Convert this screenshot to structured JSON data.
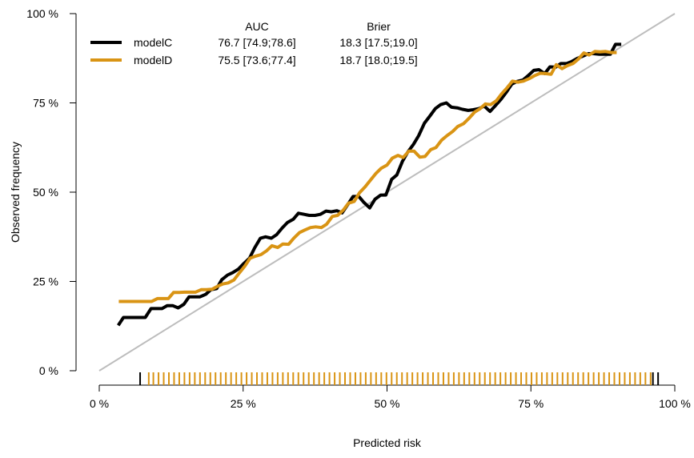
{
  "chart_data": {
    "type": "line",
    "title": "",
    "xlabel": "Predicted risk",
    "ylabel": "Observed frequency",
    "xlim": [
      0,
      100
    ],
    "ylim": [
      0,
      100
    ],
    "x_ticks": [
      {
        "value": 0,
        "label": "0 %"
      },
      {
        "value": 25,
        "label": "25 %"
      },
      {
        "value": 50,
        "label": "50 %"
      },
      {
        "value": 75,
        "label": "75 %"
      },
      {
        "value": 100,
        "label": "100 %"
      }
    ],
    "y_ticks": [
      {
        "value": 0,
        "label": "0 %"
      },
      {
        "value": 25,
        "label": "25 %"
      },
      {
        "value": 50,
        "label": "50 %"
      },
      {
        "value": 75,
        "label": "75 %"
      },
      {
        "value": 100,
        "label": "100 %"
      }
    ],
    "grid": false,
    "legend_position": "top-left",
    "legend_headers": {
      "auc": "AUC",
      "brier": "Brier"
    },
    "reference_line": {
      "name": "diagonal",
      "color": "#bdbdbd",
      "points": [
        [
          0,
          0
        ],
        [
          100,
          100
        ]
      ]
    },
    "series": [
      {
        "name": "modelC",
        "color": "#000000",
        "auc": "76.7 [74.9;78.6]",
        "brier": "18.3 [17.5;19.0]",
        "x": [
          3.3,
          4.2,
          5.2,
          6.1,
          7.1,
          8.0,
          9.0,
          9.9,
          10.9,
          11.8,
          12.8,
          13.7,
          14.7,
          15.6,
          16.6,
          17.5,
          18.5,
          19.4,
          20.4,
          21.3,
          22.3,
          23.2,
          24.2,
          25.1,
          26.1,
          27.0,
          28.0,
          28.9,
          29.9,
          30.8,
          31.8,
          32.7,
          33.7,
          34.6,
          35.6,
          36.5,
          37.5,
          38.4,
          39.4,
          40.3,
          41.3,
          42.2,
          43.2,
          44.1,
          45.1,
          46.0,
          47.0,
          47.9,
          48.9,
          49.8,
          50.8,
          51.7,
          52.7,
          53.6,
          54.6,
          55.5,
          56.5,
          57.4,
          58.4,
          59.3,
          60.3,
          61.2,
          62.2,
          63.1,
          64.1,
          65.0,
          66.0,
          66.9,
          67.9,
          68.8,
          69.8,
          70.7,
          71.7,
          72.6,
          73.6,
          74.5,
          75.5,
          76.4,
          77.4,
          78.3,
          79.3,
          80.2,
          81.2,
          82.1,
          83.1,
          84.0,
          85.0,
          85.9,
          86.9,
          87.8,
          88.8,
          89.7,
          90.7
        ],
        "y": [
          12.7,
          14.9,
          14.9,
          14.9,
          14.9,
          14.9,
          17.4,
          17.4,
          17.4,
          18.2,
          18.2,
          17.6,
          18.6,
          20.7,
          20.7,
          20.7,
          21.4,
          22.7,
          23.0,
          25.5,
          26.8,
          27.5,
          28.5,
          30.0,
          31.5,
          34.4,
          37.1,
          37.5,
          37.1,
          38.1,
          40.0,
          41.5,
          42.4,
          44.1,
          43.8,
          43.5,
          43.5,
          43.8,
          44.7,
          44.5,
          44.8,
          44.2,
          46.6,
          48.8,
          48.8,
          47.1,
          45.6,
          48.0,
          49.2,
          49.2,
          53.6,
          54.8,
          58.7,
          61.2,
          63.4,
          65.8,
          69.3,
          71.2,
          73.4,
          74.5,
          75.0,
          73.8,
          73.6,
          73.2,
          72.9,
          73.1,
          73.4,
          74.1,
          72.6,
          74.2,
          76.0,
          77.9,
          80.3,
          81.0,
          81.4,
          82.6,
          84.1,
          84.3,
          83.2,
          85.1,
          85.0,
          86.0,
          86.0,
          86.6,
          87.5,
          88.1,
          88.8,
          88.8,
          88.6,
          88.6,
          88.6,
          91.4,
          91.4
        ]
      },
      {
        "name": "modelD",
        "color": "#d99414",
        "auc": "75.5 [73.6;77.4]",
        "brier": "18.7 [18.0;19.5]",
        "x": [
          3.4,
          4.4,
          5.3,
          6.3,
          7.2,
          8.2,
          9.1,
          10.1,
          11.0,
          12.0,
          12.9,
          13.9,
          14.8,
          15.8,
          16.7,
          17.7,
          18.6,
          19.6,
          20.5,
          21.5,
          22.4,
          23.4,
          24.3,
          25.3,
          26.2,
          27.2,
          28.1,
          29.1,
          30.0,
          31.0,
          31.9,
          32.9,
          33.8,
          34.8,
          35.7,
          36.7,
          37.6,
          38.6,
          39.5,
          40.5,
          41.4,
          42.4,
          43.3,
          44.3,
          45.2,
          46.2,
          47.1,
          48.1,
          49.0,
          50.0,
          50.9,
          51.9,
          52.8,
          53.8,
          54.7,
          55.7,
          56.6,
          57.6,
          58.5,
          59.5,
          60.4,
          61.4,
          62.3,
          63.3,
          64.2,
          65.2,
          66.1,
          67.1,
          68.0,
          69.0,
          69.9,
          70.9,
          71.8,
          72.8,
          73.7,
          74.7,
          75.6,
          76.6,
          77.5,
          78.5,
          79.4,
          80.4,
          81.3,
          82.3,
          83.2,
          84.2,
          85.1,
          86.1,
          87.0,
          88.0,
          88.9,
          89.9
        ],
        "y": [
          19.4,
          19.4,
          19.4,
          19.4,
          19.4,
          19.4,
          19.4,
          20.2,
          20.2,
          20.2,
          21.9,
          21.9,
          22.0,
          22.0,
          22.0,
          22.7,
          22.7,
          22.8,
          23.6,
          24.3,
          24.6,
          25.4,
          27.3,
          29.3,
          31.5,
          32.1,
          32.5,
          33.6,
          35.0,
          34.5,
          35.5,
          35.4,
          37.1,
          38.7,
          39.4,
          40.1,
          40.3,
          40.1,
          41.0,
          43.2,
          43.5,
          45.0,
          46.9,
          47.4,
          49.8,
          51.5,
          53.3,
          55.3,
          56.7,
          57.6,
          59.5,
          60.3,
          59.7,
          61.5,
          61.5,
          59.8,
          60.0,
          61.9,
          62.5,
          64.6,
          65.8,
          67.0,
          68.4,
          69.2,
          70.6,
          72.4,
          73.3,
          74.7,
          74.5,
          75.6,
          77.5,
          79.3,
          81.1,
          80.8,
          81.1,
          81.8,
          82.6,
          83.3,
          83.2,
          83.0,
          85.7,
          84.6,
          85.4,
          86.0,
          87.2,
          89.0,
          88.4,
          89.4,
          89.3,
          89.4,
          89.1,
          89.1
        ]
      }
    ],
    "rug": {
      "position": "bottom",
      "ticks": [
        {
          "x": 7.1,
          "color": "#000000"
        },
        {
          "x": 8.6,
          "color": "#d99414"
        },
        {
          "x": 9.4,
          "color": "#d99414"
        },
        {
          "x": 10.3,
          "color": "#d99414"
        },
        {
          "x": 11.2,
          "color": "#d99414"
        },
        {
          "x": 12.1,
          "color": "#d99414"
        },
        {
          "x": 13.0,
          "color": "#d99414"
        },
        {
          "x": 13.9,
          "color": "#d99414"
        },
        {
          "x": 14.8,
          "color": "#d99414"
        },
        {
          "x": 15.7,
          "color": "#d99414"
        },
        {
          "x": 16.6,
          "color": "#d99414"
        },
        {
          "x": 17.5,
          "color": "#d99414"
        },
        {
          "x": 18.4,
          "color": "#d99414"
        },
        {
          "x": 19.3,
          "color": "#d99414"
        },
        {
          "x": 20.2,
          "color": "#d99414"
        },
        {
          "x": 21.1,
          "color": "#d99414"
        },
        {
          "x": 22.0,
          "color": "#d99414"
        },
        {
          "x": 22.9,
          "color": "#d99414"
        },
        {
          "x": 23.8,
          "color": "#d99414"
        },
        {
          "x": 24.7,
          "color": "#d99414"
        },
        {
          "x": 25.6,
          "color": "#d99414"
        },
        {
          "x": 26.5,
          "color": "#d99414"
        },
        {
          "x": 27.4,
          "color": "#d99414"
        },
        {
          "x": 28.3,
          "color": "#d99414"
        },
        {
          "x": 29.2,
          "color": "#d99414"
        },
        {
          "x": 30.1,
          "color": "#d99414"
        },
        {
          "x": 31.0,
          "color": "#d99414"
        },
        {
          "x": 31.9,
          "color": "#d99414"
        },
        {
          "x": 32.8,
          "color": "#d99414"
        },
        {
          "x": 33.7,
          "color": "#d99414"
        },
        {
          "x": 34.6,
          "color": "#d99414"
        },
        {
          "x": 35.5,
          "color": "#d99414"
        },
        {
          "x": 36.4,
          "color": "#d99414"
        },
        {
          "x": 37.3,
          "color": "#d99414"
        },
        {
          "x": 38.2,
          "color": "#d99414"
        },
        {
          "x": 39.1,
          "color": "#d99414"
        },
        {
          "x": 40.0,
          "color": "#d99414"
        },
        {
          "x": 40.9,
          "color": "#d99414"
        },
        {
          "x": 41.8,
          "color": "#d99414"
        },
        {
          "x": 42.7,
          "color": "#d99414"
        },
        {
          "x": 43.6,
          "color": "#d99414"
        },
        {
          "x": 44.5,
          "color": "#d99414"
        },
        {
          "x": 45.4,
          "color": "#d99414"
        },
        {
          "x": 46.3,
          "color": "#d99414"
        },
        {
          "x": 47.2,
          "color": "#d99414"
        },
        {
          "x": 48.1,
          "color": "#d99414"
        },
        {
          "x": 49.0,
          "color": "#d99414"
        },
        {
          "x": 49.9,
          "color": "#d99414"
        },
        {
          "x": 50.8,
          "color": "#d99414"
        },
        {
          "x": 51.7,
          "color": "#d99414"
        },
        {
          "x": 52.6,
          "color": "#d99414"
        },
        {
          "x": 53.5,
          "color": "#d99414"
        },
        {
          "x": 54.4,
          "color": "#d99414"
        },
        {
          "x": 55.3,
          "color": "#d99414"
        },
        {
          "x": 56.2,
          "color": "#d99414"
        },
        {
          "x": 57.1,
          "color": "#d99414"
        },
        {
          "x": 58.0,
          "color": "#d99414"
        },
        {
          "x": 58.9,
          "color": "#d99414"
        },
        {
          "x": 59.8,
          "color": "#d99414"
        },
        {
          "x": 60.7,
          "color": "#d99414"
        },
        {
          "x": 61.6,
          "color": "#d99414"
        },
        {
          "x": 62.5,
          "color": "#d99414"
        },
        {
          "x": 63.4,
          "color": "#d99414"
        },
        {
          "x": 64.3,
          "color": "#d99414"
        },
        {
          "x": 65.2,
          "color": "#d99414"
        },
        {
          "x": 66.1,
          "color": "#d99414"
        },
        {
          "x": 67.0,
          "color": "#d99414"
        },
        {
          "x": 67.9,
          "color": "#d99414"
        },
        {
          "x": 68.8,
          "color": "#d99414"
        },
        {
          "x": 69.7,
          "color": "#d99414"
        },
        {
          "x": 70.6,
          "color": "#d99414"
        },
        {
          "x": 71.5,
          "color": "#d99414"
        },
        {
          "x": 72.4,
          "color": "#d99414"
        },
        {
          "x": 73.3,
          "color": "#d99414"
        },
        {
          "x": 74.2,
          "color": "#d99414"
        },
        {
          "x": 75.1,
          "color": "#d99414"
        },
        {
          "x": 76.0,
          "color": "#d99414"
        },
        {
          "x": 76.9,
          "color": "#d99414"
        },
        {
          "x": 77.8,
          "color": "#d99414"
        },
        {
          "x": 78.7,
          "color": "#d99414"
        },
        {
          "x": 79.6,
          "color": "#d99414"
        },
        {
          "x": 80.5,
          "color": "#d99414"
        },
        {
          "x": 81.4,
          "color": "#d99414"
        },
        {
          "x": 82.3,
          "color": "#d99414"
        },
        {
          "x": 83.2,
          "color": "#d99414"
        },
        {
          "x": 84.1,
          "color": "#d99414"
        },
        {
          "x": 85.0,
          "color": "#d99414"
        },
        {
          "x": 85.9,
          "color": "#d99414"
        },
        {
          "x": 86.8,
          "color": "#d99414"
        },
        {
          "x": 87.7,
          "color": "#d99414"
        },
        {
          "x": 88.6,
          "color": "#d99414"
        },
        {
          "x": 89.5,
          "color": "#d99414"
        },
        {
          "x": 90.4,
          "color": "#d99414"
        },
        {
          "x": 91.3,
          "color": "#d99414"
        },
        {
          "x": 92.2,
          "color": "#d99414"
        },
        {
          "x": 93.1,
          "color": "#d99414"
        },
        {
          "x": 94.0,
          "color": "#d99414"
        },
        {
          "x": 94.9,
          "color": "#d99414"
        },
        {
          "x": 95.8,
          "color": "#d99414"
        },
        {
          "x": 96.2,
          "color": "#000000"
        },
        {
          "x": 97.1,
          "color": "#000000"
        }
      ]
    }
  }
}
